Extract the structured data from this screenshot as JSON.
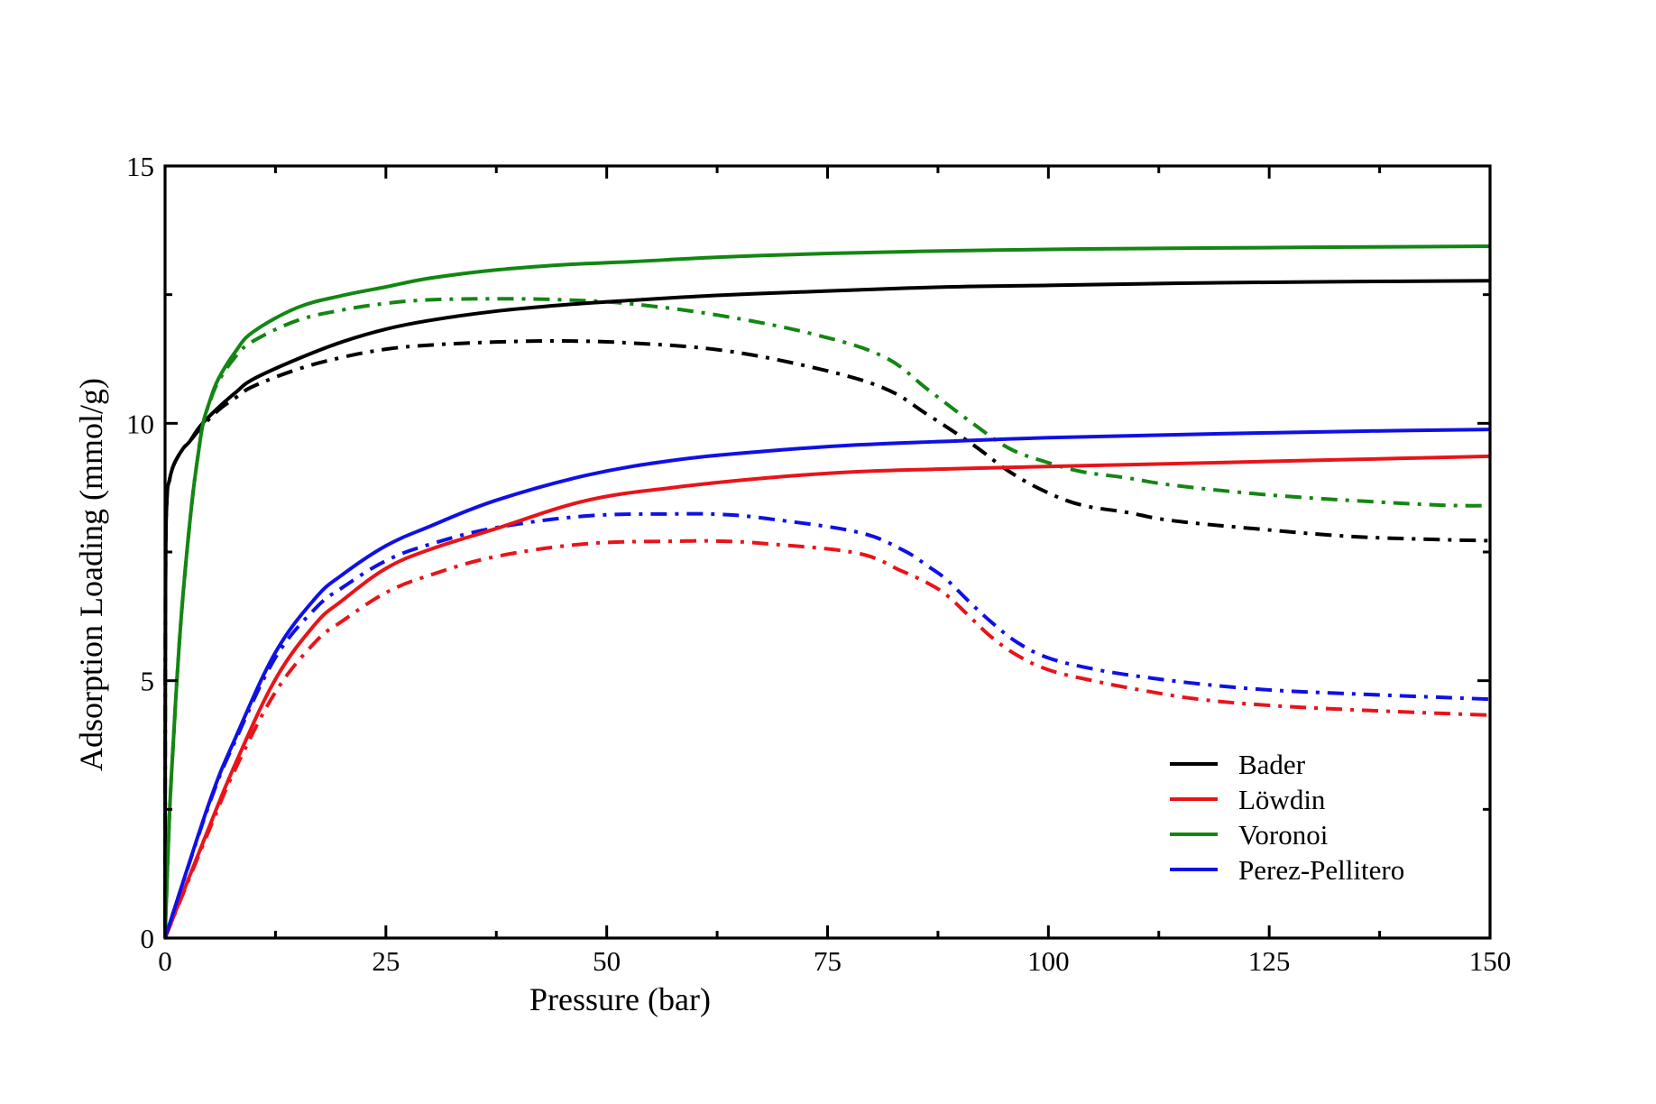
{
  "chart_data": {
    "type": "line",
    "title": "",
    "xlabel": "Pressure (bar)",
    "ylabel": "Adsorption Loading (mmol/g)",
    "xlim": [
      0,
      150
    ],
    "ylim": [
      0,
      15
    ],
    "x_major_ticks": [
      0,
      25,
      50,
      75,
      100,
      125,
      150
    ],
    "x_tick_labels": [
      "0",
      "25",
      "50",
      "75",
      "100",
      "125",
      "150"
    ],
    "x_minor_ticks": [
      12.5,
      37.5,
      62.5,
      87.5,
      112.5,
      137.5
    ],
    "y_major_ticks": [
      0,
      5,
      10,
      15
    ],
    "y_tick_labels": [
      "0",
      "5",
      "10",
      "15"
    ],
    "y_minor_ticks": [
      2.5,
      7.5,
      12.5
    ],
    "grid": false,
    "legend": {
      "position": "bottom-right",
      "entries": [
        {
          "label": "Bader",
          "color": "#000000"
        },
        {
          "label": "Löwdin",
          "color": "#e8141a"
        },
        {
          "label": "Voronoi",
          "color": "#138613"
        },
        {
          "label": "Perez-Pellitero",
          "color": "#1010e6"
        }
      ]
    },
    "series": [
      {
        "name": "Bader",
        "style": "solid",
        "color": "#000000",
        "x": [
          0,
          0.05,
          0.2,
          0.5,
          1,
          2,
          2.8,
          4,
          6,
          8,
          10,
          15,
          20,
          25,
          30,
          37.5,
          45,
          52.8,
          63,
          75,
          88.5,
          100,
          114,
          125,
          140,
          150
        ],
        "y": [
          0,
          6.8,
          8.5,
          8.9,
          9.2,
          9.5,
          9.65,
          9.95,
          10.3,
          10.6,
          10.86,
          11.25,
          11.58,
          11.83,
          12.0,
          12.18,
          12.3,
          12.39,
          12.49,
          12.57,
          12.65,
          12.68,
          12.72,
          12.74,
          12.76,
          12.77
        ]
      },
      {
        "name": "Bader",
        "style": "dashdot",
        "color": "#000000",
        "x": [
          0,
          0.05,
          0.2,
          0.5,
          1,
          2,
          2.8,
          4,
          6,
          8,
          10,
          15,
          20,
          25,
          30,
          37.5,
          45,
          52.8,
          63,
          73.2,
          81.3,
          86.4,
          91.5,
          95.6,
          99.7,
          103.8,
          108.9,
          114,
          124.2,
          134.4,
          144.6,
          150
        ],
        "y": [
          0,
          6.8,
          8.5,
          8.9,
          9.2,
          9.5,
          9.65,
          9.9,
          10.25,
          10.5,
          10.72,
          11.05,
          11.28,
          11.44,
          11.52,
          11.58,
          11.6,
          11.56,
          11.42,
          11.09,
          10.69,
          10.16,
          9.58,
          9.06,
          8.67,
          8.41,
          8.27,
          8.11,
          7.94,
          7.8,
          7.74,
          7.72
        ]
      },
      {
        "name": "Löwdin",
        "style": "solid",
        "color": "#e8141a",
        "x": [
          0,
          5,
          8,
          12.5,
          17,
          20,
          25,
          30,
          37.4,
          47.7,
          57.9,
          68.1,
          78.3,
          90,
          99.7,
          110,
          120,
          130,
          140,
          150
        ],
        "y": [
          0,
          2.16,
          3.4,
          5.03,
          6.1,
          6.55,
          7.18,
          7.55,
          7.95,
          8.5,
          8.76,
          8.94,
          9.06,
          9.12,
          9.16,
          9.2,
          9.24,
          9.28,
          9.32,
          9.36
        ]
      },
      {
        "name": "Löwdin",
        "style": "dashdot",
        "color": "#e8141a",
        "x": [
          0,
          5,
          8,
          12.5,
          17,
          20,
          25,
          30,
          37.4,
          47.7,
          57.9,
          63,
          68.1,
          78.3,
          83.4,
          86.4,
          88.5,
          91,
          93.6,
          96.6,
          100.2,
          105.3,
          110.4,
          117,
          125,
          135,
          150
        ],
        "y": [
          0,
          2.1,
          3.3,
          4.78,
          5.75,
          6.15,
          6.71,
          7.05,
          7.41,
          7.66,
          7.71,
          7.71,
          7.66,
          7.48,
          7.13,
          6.89,
          6.66,
          6.26,
          5.84,
          5.48,
          5.2,
          4.99,
          4.82,
          4.64,
          4.52,
          4.43,
          4.33
        ]
      },
      {
        "name": "Voronoi",
        "style": "solid",
        "color": "#138613",
        "x": [
          0,
          0.5,
          1,
          1.4,
          2,
          3,
          3.8,
          4.3,
          5,
          6,
          8,
          10,
          15,
          20,
          25,
          30,
          37.5,
          45,
          52.8,
          63,
          75,
          88.5,
          100,
          114,
          130,
          150
        ],
        "y": [
          0,
          2.4,
          4.0,
          5.17,
          6.6,
          8.4,
          9.46,
          10.0,
          10.4,
          10.85,
          11.4,
          11.78,
          12.25,
          12.48,
          12.65,
          12.82,
          12.98,
          13.08,
          13.14,
          13.23,
          13.3,
          13.35,
          13.38,
          13.4,
          13.42,
          13.44
        ]
      },
      {
        "name": "Voronoi",
        "style": "dashdot",
        "color": "#138613",
        "x": [
          0,
          0.5,
          1,
          1.4,
          2,
          3,
          3.8,
          4.3,
          5,
          6,
          8,
          10,
          15,
          20,
          25,
          30,
          37.5,
          45,
          52.8,
          63,
          73.2,
          81.3,
          86.4,
          91.5,
          95.6,
          99.7,
          103.8,
          108.9,
          114,
          124.2,
          134.4,
          144.6,
          150
        ],
        "y": [
          0,
          2.4,
          4.0,
          5.17,
          6.6,
          8.4,
          9.46,
          10.0,
          10.38,
          10.8,
          11.3,
          11.6,
          12.0,
          12.2,
          12.33,
          12.4,
          12.42,
          12.4,
          12.32,
          12.09,
          11.74,
          11.3,
          10.65,
          9.99,
          9.51,
          9.25,
          9.06,
          8.94,
          8.8,
          8.62,
          8.5,
          8.41,
          8.4
        ]
      },
      {
        "name": "Perez-Pellitero",
        "style": "solid",
        "color": "#1010e6",
        "x": [
          0,
          5,
          8,
          12.5,
          17,
          20,
          25,
          30,
          37.4,
          47.7,
          57.9,
          68.1,
          78.3,
          90,
          100,
          110,
          120,
          130,
          140,
          150
        ],
        "y": [
          0,
          2.63,
          3.9,
          5.55,
          6.6,
          7.05,
          7.62,
          8.0,
          8.5,
          8.99,
          9.29,
          9.46,
          9.58,
          9.66,
          9.72,
          9.76,
          9.8,
          9.83,
          9.86,
          9.88
        ]
      },
      {
        "name": "Perez-Pellitero",
        "style": "dashdot",
        "color": "#1010e6",
        "x": [
          0,
          5,
          8,
          12.5,
          17,
          20,
          25,
          30,
          37.4,
          47.7,
          57.9,
          63,
          68.1,
          78.3,
          83.4,
          86.4,
          88.5,
          91,
          93.6,
          96.6,
          100.2,
          105.3,
          110.4,
          117,
          125,
          135,
          150
        ],
        "y": [
          0,
          2.6,
          3.85,
          5.45,
          6.4,
          6.8,
          7.33,
          7.65,
          7.97,
          8.2,
          8.24,
          8.23,
          8.15,
          7.89,
          7.55,
          7.22,
          6.96,
          6.54,
          6.13,
          5.73,
          5.43,
          5.22,
          5.08,
          4.94,
          4.82,
          4.74,
          4.64
        ]
      }
    ]
  }
}
